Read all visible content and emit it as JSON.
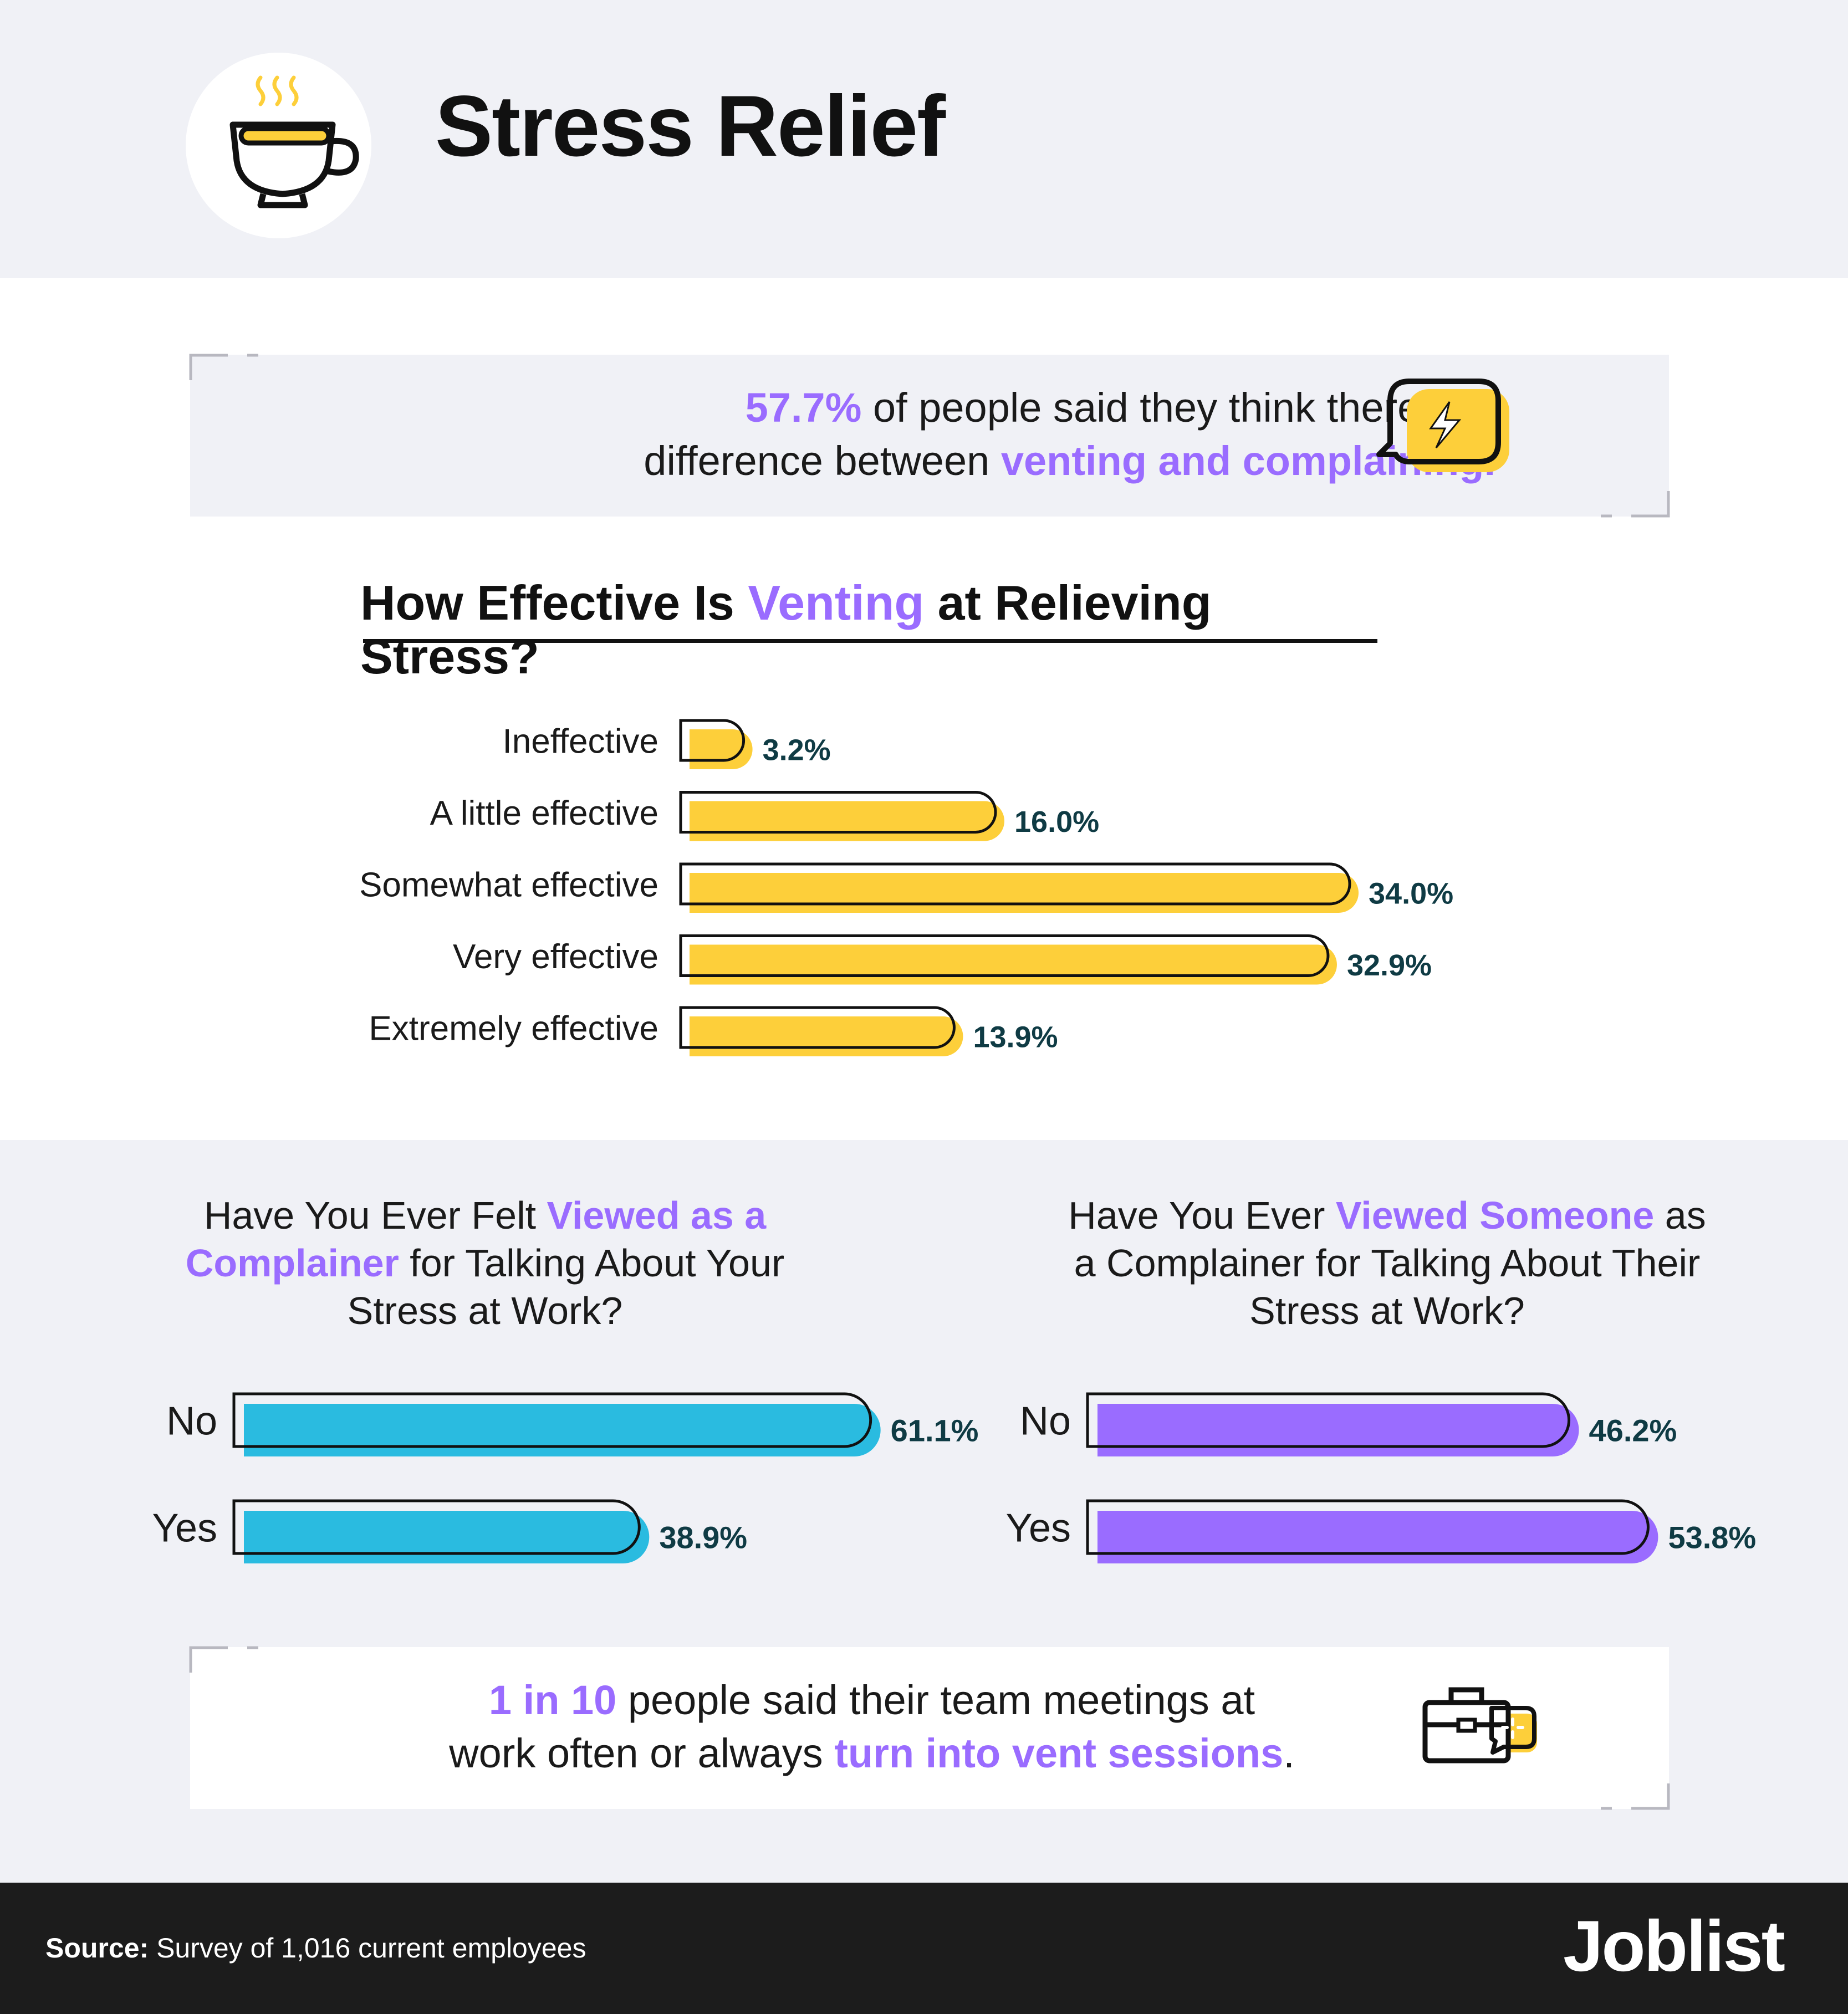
{
  "header": {
    "title": "Stress Relief",
    "icon": "coffee-cup-icon"
  },
  "callout_top": {
    "stat": "57.7%",
    "text_1": " of people said they think there is a",
    "text_2": "difference between ",
    "highlight": "venting and complaining.",
    "icon": "lightning-speech-bubble-icon"
  },
  "callout_bottom": {
    "stat": "1 in 10",
    "text_1": " people said their team meetings at",
    "text_2": "work often or always ",
    "highlight": "turn into vent sessions",
    "text_3": ".",
    "icon": "briefcase-chat-icon"
  },
  "colors": {
    "accent_purple": "#9a6cff",
    "bar_yellow": "#fdcf3a",
    "bar_blue": "#2abbe0",
    "bar_purple": "#9a6cff",
    "value_text": "#0f3b44"
  },
  "chart_data": [
    {
      "type": "bar",
      "orientation": "horizontal",
      "title_parts": [
        "How Effective Is ",
        "Venting",
        " at Relieving Stress?"
      ],
      "categories": [
        "Ineffective",
        "A little effective",
        "Somewhat effective",
        "Very effective",
        "Extremely effective"
      ],
      "values": [
        3.2,
        16.0,
        34.0,
        32.9,
        13.9
      ],
      "value_labels": [
        "3.2%",
        "16.0%",
        "34.0%",
        "32.9%",
        "13.9%"
      ],
      "unit": "%"
    },
    {
      "type": "bar",
      "orientation": "horizontal",
      "title_parts": [
        "Have You Ever Felt ",
        "Viewed as a Complainer",
        " for Talking About Your Stress at Work?"
      ],
      "categories": [
        "No",
        "Yes"
      ],
      "values": [
        61.1,
        38.9
      ],
      "value_labels": [
        "61.1%",
        "38.9%"
      ],
      "unit": "%"
    },
    {
      "type": "bar",
      "orientation": "horizontal",
      "title_parts": [
        "Have You Ever ",
        "Viewed Someone",
        " as a Complainer for Talking About Their Stress at Work?"
      ],
      "categories": [
        "No",
        "Yes"
      ],
      "values": [
        46.2,
        53.8
      ],
      "value_labels": [
        "46.2%",
        "53.8%"
      ],
      "unit": "%"
    }
  ],
  "footer": {
    "source_label": "Source:",
    "source_text": " Survey of 1,016 current employees",
    "brand": "Joblist"
  }
}
